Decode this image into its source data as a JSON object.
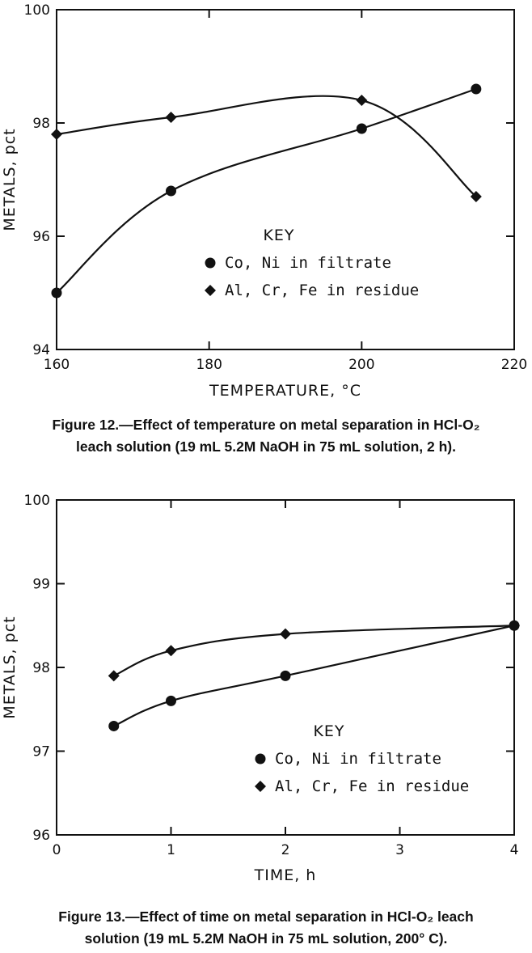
{
  "chart_data": [
    {
      "type": "line",
      "x": [
        160,
        175,
        200,
        215
      ],
      "xlim": [
        160,
        220
      ],
      "ylim": [
        94,
        100
      ],
      "xticks": [
        "160",
        "180",
        "200",
        "220"
      ],
      "yticks": [
        "94",
        "96",
        "98",
        "100"
      ],
      "xlabel": "TEMPERATURE, °C",
      "ylabel": "METALS, pct",
      "legend_title": "KEY",
      "series": [
        {
          "name": "Co, Ni in filtrate",
          "marker": "circle",
          "x": [
            160,
            175,
            200,
            215
          ],
          "values": [
            95.0,
            96.8,
            97.9,
            98.6
          ]
        },
        {
          "name": "Al, Cr, Fe in residue",
          "marker": "diamond",
          "x": [
            160,
            175,
            200,
            215
          ],
          "values": [
            97.8,
            98.1,
            98.4,
            96.7
          ]
        }
      ],
      "grid": false,
      "legend_position": "center-right"
    },
    {
      "type": "line",
      "x": [
        0.5,
        1,
        2,
        4
      ],
      "xlim": [
        0,
        4
      ],
      "ylim": [
        96,
        100
      ],
      "xticks": [
        "0",
        "1",
        "2",
        "3",
        "4"
      ],
      "yticks": [
        "96",
        "97",
        "98",
        "99",
        "100"
      ],
      "xlabel": "TIME, h",
      "ylabel": "METALS, pct",
      "legend_title": "KEY",
      "series": [
        {
          "name": "Co, Ni in filtrate",
          "marker": "circle",
          "x": [
            0.5,
            1,
            2,
            4
          ],
          "values": [
            97.3,
            97.6,
            97.9,
            98.5
          ]
        },
        {
          "name": "Al, Cr, Fe in residue",
          "marker": "diamond",
          "x": [
            0.5,
            1,
            2,
            4
          ],
          "values": [
            97.9,
            98.2,
            98.4,
            98.5
          ]
        }
      ],
      "grid": false,
      "legend_position": "center-right"
    }
  ],
  "captions": {
    "fig12_line1": "Figure 12.—Effect of temperature on metal separation in HCl-O₂",
    "fig12_line2": "leach solution (19 mL 5.2M NaOH in 75 mL solution, 2 h).",
    "fig13_line1": "Figure 13.—Effect of time on metal separation in HCl-O₂ leach",
    "fig13_line2": "solution (19 mL 5.2M NaOH in 75 mL solution, 200° C)."
  }
}
